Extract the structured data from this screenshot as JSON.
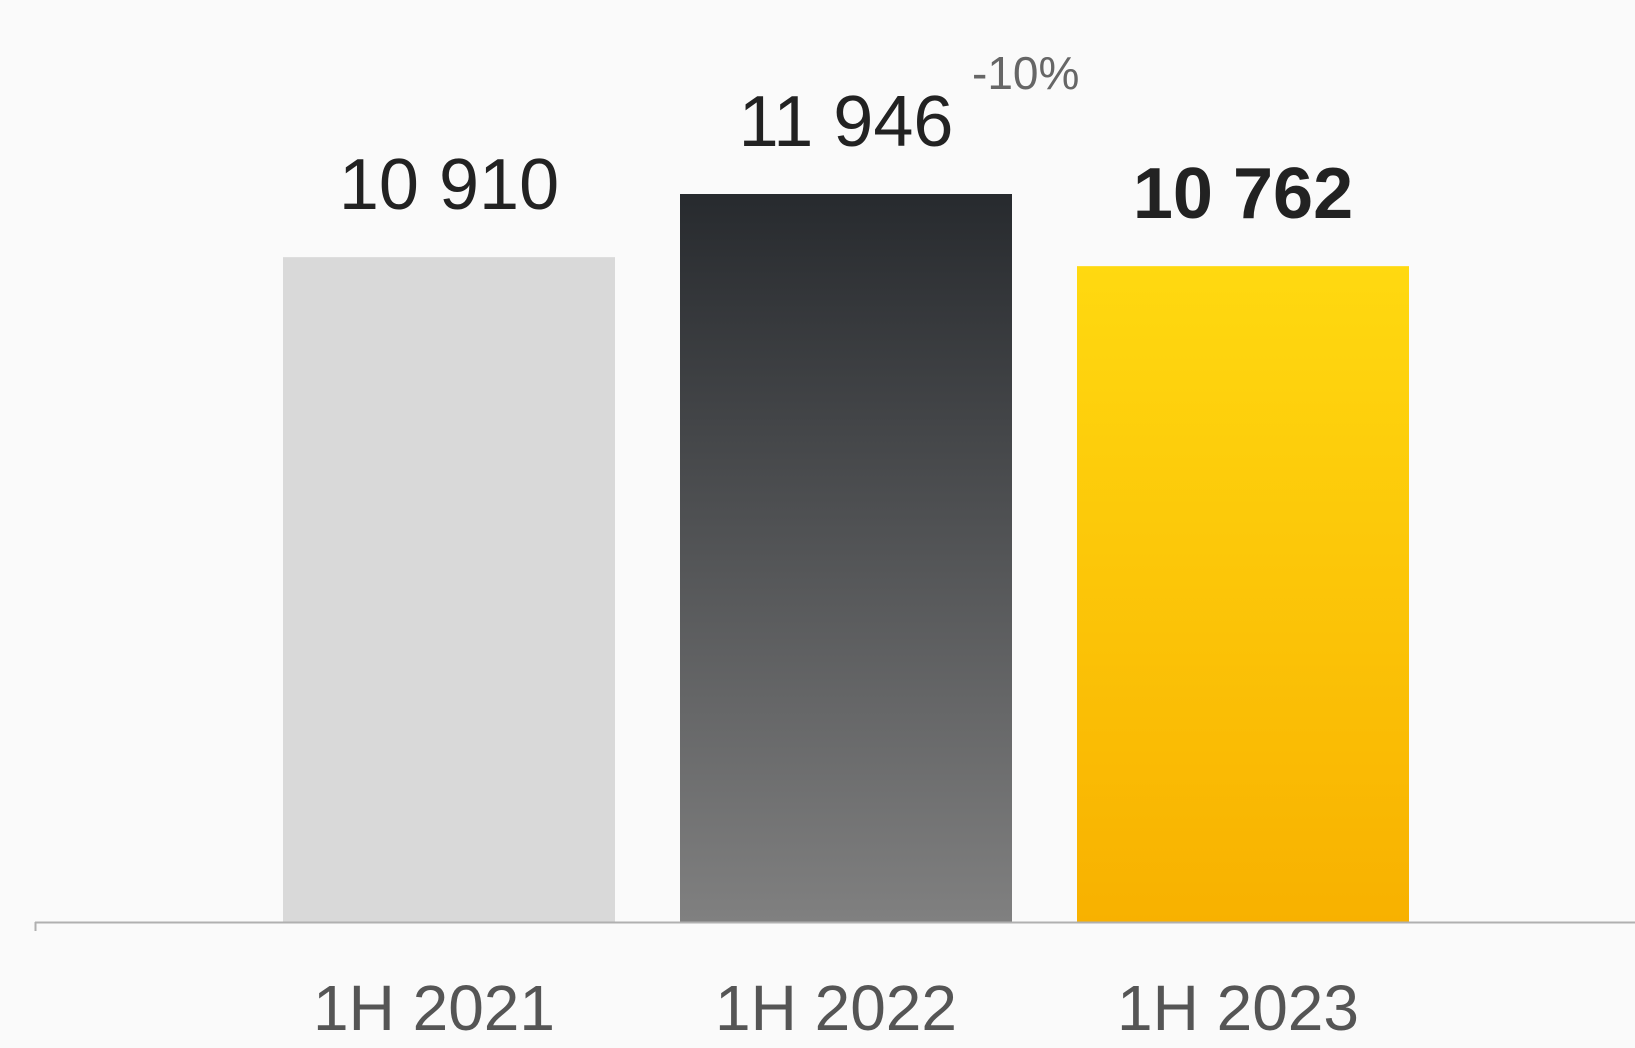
{
  "chart_data": {
    "type": "bar",
    "categories": [
      "1H 2021",
      "1H 2022",
      "1H 2023"
    ],
    "values": [
      10910,
      11946,
      10762
    ],
    "value_labels": [
      "10 910",
      "11 946",
      "10 762"
    ],
    "highlight_index": 2,
    "change_annotation": {
      "text": "-10%",
      "attached_to_index": 1
    },
    "ylim": [
      0,
      12000
    ],
    "grid": false,
    "legend": "none",
    "colors": {
      "bar_1": "#d9d9d9",
      "bar_2_top": "#272a2e",
      "bar_2_bottom": "#808080",
      "bar_3_top": "#ffd910",
      "bar_3_bottom": "#f8b100",
      "axis": "#b0b0b0"
    }
  }
}
